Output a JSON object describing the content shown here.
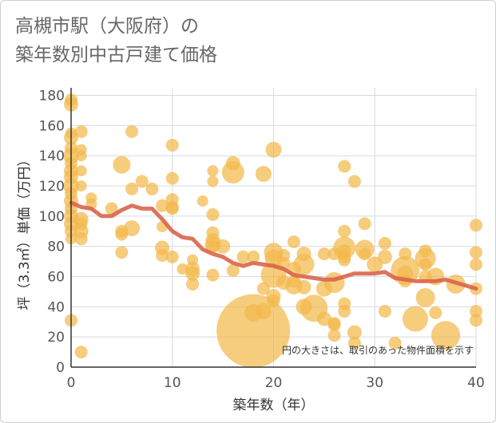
{
  "title_line1": "高槻市駅（大阪府）の",
  "title_line2": "築年数別中古戸建て価格",
  "chart_data": {
    "type": "scatter",
    "title": "高槻市駅（大阪府）の築年数別中古戸建て価格",
    "xlabel": "築年数（年）",
    "ylabel": "坪（3.3㎡）単価（万円）",
    "xlim": [
      0,
      40
    ],
    "ylim": [
      0,
      185
    ],
    "xticks": [
      0,
      10,
      20,
      30,
      40
    ],
    "yticks": [
      0,
      20,
      40,
      60,
      80,
      100,
      120,
      140,
      160,
      180
    ],
    "grid": true,
    "annotation": "円の大きさは、取引のあった物件面積を示す",
    "colors": {
      "bubble": "#f2b84b",
      "line": "#d9654b",
      "grid": "#d3dbe6",
      "axis": "#333333"
    },
    "series": [
      {
        "name": "取引",
        "kind": "bubble",
        "points": [
          [
            0,
            177,
            8
          ],
          [
            0,
            174,
            9
          ],
          [
            0,
            155,
            7
          ],
          [
            0,
            152,
            9
          ],
          [
            0,
            145,
            8
          ],
          [
            0,
            140,
            10
          ],
          [
            0,
            135,
            8
          ],
          [
            0,
            130,
            9
          ],
          [
            0,
            126,
            9
          ],
          [
            0,
            120,
            10
          ],
          [
            0,
            115,
            8
          ],
          [
            0,
            110,
            9
          ],
          [
            0,
            105,
            8
          ],
          [
            0,
            100,
            9
          ],
          [
            0,
            95,
            9
          ],
          [
            0,
            90,
            8
          ],
          [
            0,
            85,
            7
          ],
          [
            0,
            31,
            8
          ],
          [
            1,
            156,
            8
          ],
          [
            1,
            144,
            7
          ],
          [
            1,
            140,
            7
          ],
          [
            1,
            130,
            7
          ],
          [
            1,
            120,
            7
          ],
          [
            1,
            98,
            9
          ],
          [
            1,
            95,
            8
          ],
          [
            1,
            90,
            9
          ],
          [
            1,
            85,
            8
          ],
          [
            1,
            10,
            8
          ],
          [
            2,
            112,
            7
          ],
          [
            2,
            108,
            7
          ],
          [
            4,
            105,
            8
          ],
          [
            5,
            134,
            11
          ],
          [
            5,
            90,
            8
          ],
          [
            5,
            88,
            8
          ],
          [
            5,
            76,
            8
          ],
          [
            6,
            156,
            8
          ],
          [
            6,
            118,
            8
          ],
          [
            6,
            92,
            10
          ],
          [
            7,
            123,
            8
          ],
          [
            8,
            118,
            8
          ],
          [
            9,
            107,
            8
          ],
          [
            9,
            93,
            7
          ],
          [
            9,
            79,
            9
          ],
          [
            9,
            74,
            8
          ],
          [
            10,
            147,
            8
          ],
          [
            10,
            125,
            8
          ],
          [
            10,
            111,
            8
          ],
          [
            10,
            106,
            8
          ],
          [
            10,
            105,
            8
          ],
          [
            10,
            73,
            8
          ],
          [
            11,
            65,
            7
          ],
          [
            12,
            71,
            7
          ],
          [
            12,
            65,
            9
          ],
          [
            12,
            62,
            9
          ],
          [
            12,
            55,
            8
          ],
          [
            13,
            110,
            7
          ],
          [
            14,
            130,
            7
          ],
          [
            14,
            123,
            7
          ],
          [
            14,
            101,
            8
          ],
          [
            14,
            89,
            8
          ],
          [
            14,
            84,
            9
          ],
          [
            14,
            81,
            10
          ],
          [
            14,
            80,
            8
          ],
          [
            14,
            61,
            8
          ],
          [
            15,
            80,
            9
          ],
          [
            16,
            135,
            9
          ],
          [
            16,
            129,
            14
          ],
          [
            16,
            64,
            8
          ],
          [
            17,
            73,
            8
          ],
          [
            18,
            73,
            8
          ],
          [
            18,
            24,
            46
          ],
          [
            18,
            36,
            11
          ],
          [
            19,
            128,
            10
          ],
          [
            19,
            52,
            8
          ],
          [
            19,
            37,
            10
          ],
          [
            20,
            144,
            10
          ],
          [
            20,
            76,
            12
          ],
          [
            20,
            72,
            11
          ],
          [
            20,
            61,
            16
          ],
          [
            20,
            47,
            9
          ],
          [
            20,
            44,
            8
          ],
          [
            21,
            74,
            8
          ],
          [
            21,
            69,
            8
          ],
          [
            21,
            56,
            9
          ],
          [
            22,
            83,
            8
          ],
          [
            22,
            65,
            9
          ],
          [
            22,
            57,
            8
          ],
          [
            22,
            54,
            11
          ],
          [
            23,
            75,
            9
          ],
          [
            23,
            68,
            13
          ],
          [
            23,
            53,
            9
          ],
          [
            23,
            40,
            10
          ],
          [
            24,
            39,
            17
          ],
          [
            25,
            75,
            8
          ],
          [
            25,
            52,
            10
          ],
          [
            25,
            32,
            9
          ],
          [
            26,
            75,
            8
          ],
          [
            26,
            56,
            13
          ],
          [
            26,
            29,
            8
          ],
          [
            26,
            28,
            8
          ],
          [
            26,
            21,
            8
          ],
          [
            27,
            133,
            8
          ],
          [
            27,
            90,
            8
          ],
          [
            27,
            79,
            14
          ],
          [
            27,
            77,
            8
          ],
          [
            27,
            73,
            8
          ],
          [
            27,
            71,
            8
          ],
          [
            27,
            42,
            8
          ],
          [
            27,
            37,
            8
          ],
          [
            28,
            123,
            8
          ],
          [
            28,
            23,
            9
          ],
          [
            28,
            16,
            8
          ],
          [
            29,
            95,
            8
          ],
          [
            29,
            78,
            12
          ],
          [
            29,
            75,
            8
          ],
          [
            30,
            68,
            10
          ],
          [
            31,
            82,
            8
          ],
          [
            31,
            73,
            9
          ],
          [
            31,
            37,
            8
          ],
          [
            32,
            16,
            8
          ],
          [
            33,
            75,
            8
          ],
          [
            33,
            64,
            18
          ],
          [
            33,
            62,
            10
          ],
          [
            33,
            57,
            8
          ],
          [
            34,
            32,
            16
          ],
          [
            35,
            77,
            8
          ],
          [
            35,
            72,
            13
          ],
          [
            35,
            68,
            8
          ],
          [
            35,
            46,
            12
          ],
          [
            35,
            60,
            8
          ],
          [
            36,
            60,
            11
          ],
          [
            36,
            36,
            8
          ],
          [
            37,
            21,
            18
          ],
          [
            38,
            55,
            12
          ],
          [
            40,
            94,
            8
          ],
          [
            40,
            76,
            8
          ],
          [
            40,
            68,
            8
          ],
          [
            40,
            52,
            8
          ],
          [
            40,
            37,
            8
          ],
          [
            40,
            31,
            8
          ]
        ]
      },
      {
        "name": "平均",
        "kind": "line",
        "x": [
          0,
          1,
          2,
          3,
          4,
          5,
          6,
          7,
          8,
          9,
          10,
          11,
          12,
          13,
          14,
          15,
          16,
          17,
          18,
          19,
          20,
          21,
          22,
          23,
          24,
          25,
          26,
          27,
          28,
          29,
          30,
          31,
          32,
          33,
          34,
          35,
          36,
          37,
          38,
          39,
          40
        ],
        "y": [
          109,
          106,
          105,
          100,
          100,
          104,
          107,
          105,
          105,
          98,
          90,
          86,
          85,
          78,
          75,
          73,
          69,
          67,
          69,
          68,
          67,
          65,
          61,
          60,
          59,
          58,
          58,
          60,
          62,
          62,
          62,
          63,
          59,
          58,
          57,
          57,
          57,
          58,
          56,
          54,
          52
        ]
      }
    ]
  }
}
